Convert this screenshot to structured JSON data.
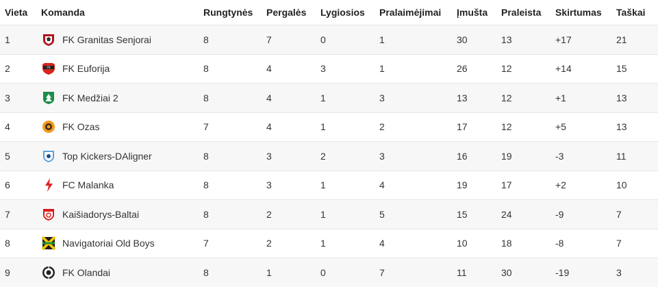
{
  "table": {
    "headers": {
      "place": "Vieta",
      "team": "Komanda",
      "played": "Rungtynės",
      "wins": "Pergalės",
      "draws": "Lygiosios",
      "losses": "Pralaimėjimai",
      "goals_for": "Įmušta",
      "goals_against": "Praleista",
      "goal_diff": "Skirtumas",
      "points": "Taškai"
    },
    "rows": [
      {
        "place": "1",
        "team": "FK Granitas Senjorai",
        "crest": "granitas-crest-icon",
        "played": "8",
        "wins": "7",
        "draws": "0",
        "losses": "1",
        "goals_for": "30",
        "goals_against": "13",
        "goal_diff": "+17",
        "points": "21"
      },
      {
        "place": "2",
        "team": "FK Euforija",
        "crest": "euforija-crest-icon",
        "played": "8",
        "wins": "4",
        "draws": "3",
        "losses": "1",
        "goals_for": "26",
        "goals_against": "12",
        "goal_diff": "+14",
        "points": "15"
      },
      {
        "place": "3",
        "team": "FK Medžiai 2",
        "crest": "medziai-crest-icon",
        "played": "8",
        "wins": "4",
        "draws": "1",
        "losses": "3",
        "goals_for": "13",
        "goals_against": "12",
        "goal_diff": "+1",
        "points": "13"
      },
      {
        "place": "4",
        "team": "FK Ozas",
        "crest": "ozas-crest-icon",
        "played": "7",
        "wins": "4",
        "draws": "1",
        "losses": "2",
        "goals_for": "17",
        "goals_against": "12",
        "goal_diff": "+5",
        "points": "13"
      },
      {
        "place": "5",
        "team": "Top Kickers-DAligner",
        "crest": "top-kickers-crest-icon",
        "played": "8",
        "wins": "3",
        "draws": "2",
        "losses": "3",
        "goals_for": "16",
        "goals_against": "19",
        "goal_diff": "-3",
        "points": "11"
      },
      {
        "place": "6",
        "team": "FC Malanka",
        "crest": "malanka-crest-icon",
        "played": "8",
        "wins": "3",
        "draws": "1",
        "losses": "4",
        "goals_for": "19",
        "goals_against": "17",
        "goal_diff": "+2",
        "points": "10"
      },
      {
        "place": "7",
        "team": "Kaišiadorys-Baltai",
        "crest": "kaisiadorys-crest-icon",
        "played": "8",
        "wins": "2",
        "draws": "1",
        "losses": "5",
        "goals_for": "15",
        "goals_against": "24",
        "goal_diff": "-9",
        "points": "7"
      },
      {
        "place": "8",
        "team": "Navigatoriai Old Boys",
        "crest": "navigatoriai-crest-icon",
        "played": "7",
        "wins": "2",
        "draws": "1",
        "losses": "4",
        "goals_for": "10",
        "goals_against": "18",
        "goal_diff": "-8",
        "points": "7"
      },
      {
        "place": "9",
        "team": "FK Olandai",
        "crest": "olandai-crest-icon",
        "played": "8",
        "wins": "1",
        "draws": "0",
        "losses": "7",
        "goals_for": "11",
        "goals_against": "30",
        "goal_diff": "-19",
        "points": "3"
      }
    ]
  }
}
